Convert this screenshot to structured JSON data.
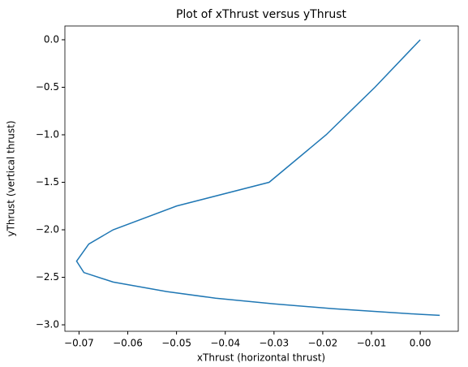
{
  "chart_data": {
    "type": "line",
    "title": "Plot of xThrust versus yThrust",
    "xlabel": "xThrust (horizontal thrust)",
    "ylabel": "yThrust (vertical thrust)",
    "series": [
      {
        "color": "#1f77b4",
        "x": [
          0,
          -0.0093,
          -0.0193,
          -0.031,
          -0.05,
          -0.063,
          -0.068,
          -0.0705,
          -0.069,
          -0.063,
          -0.052,
          -0.042,
          -0.03,
          -0.018,
          -0.006,
          0.0,
          0.004
        ],
        "values": [
          0,
          -0.5,
          -1.0,
          -1.5,
          -1.75,
          -2.0,
          -2.15,
          -2.33,
          -2.45,
          -2.55,
          -2.65,
          -2.72,
          -2.78,
          -2.83,
          -2.87,
          -2.89,
          -2.9
        ]
      }
    ],
    "xlim": [
      -0.0729,
      0.0078
    ],
    "ylim": [
      -3.068,
      0.145
    ],
    "xticks": [
      {
        "value": -0.07,
        "label": "−0.07"
      },
      {
        "value": -0.06,
        "label": "−0.06"
      },
      {
        "value": -0.05,
        "label": "−0.05"
      },
      {
        "value": -0.04,
        "label": "−0.04"
      },
      {
        "value": -0.03,
        "label": "−0.03"
      },
      {
        "value": -0.02,
        "label": "−0.02"
      },
      {
        "value": -0.01,
        "label": "−0.01"
      },
      {
        "value": 0,
        "label": "0.00"
      }
    ],
    "yticks": [
      {
        "value": 0,
        "label": "0.0"
      },
      {
        "value": -0.5,
        "label": "−0.5"
      },
      {
        "value": -1.0,
        "label": "−1.0"
      },
      {
        "value": -1.5,
        "label": "−1.5"
      },
      {
        "value": -2.0,
        "label": "−2.0"
      },
      {
        "value": -2.5,
        "label": "−2.5"
      },
      {
        "value": -3.0,
        "label": "−3.0"
      }
    ],
    "grid": false
  }
}
